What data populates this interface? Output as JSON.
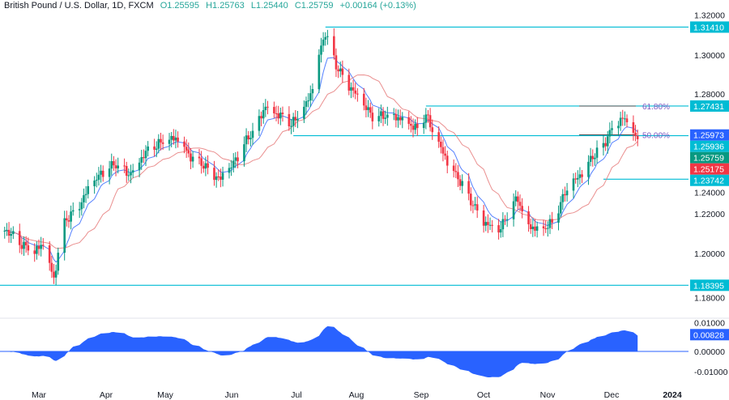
{
  "header": {
    "symbol": "British Pound / U.S. Dollar, 1D, FXCM",
    "open": "O1.25595",
    "high": "H1.25763",
    "low": "L1.25440",
    "close": "C1.25759",
    "change": "+0.00164 (+0.13%)"
  },
  "chart_data": [
    {
      "type": "candlestick",
      "title": "British Pound / U.S. Dollar, 1D, FXCM",
      "ylim": [
        1.17,
        1.32
      ],
      "y_ticks": [
        "1.32000",
        "1.30000",
        "1.28000",
        "1.24000",
        "1.22000",
        "1.20000",
        "1.18000"
      ],
      "x_ticks": [
        "Mar",
        "Apr",
        "May",
        "Jun",
        "Jul",
        "Aug",
        "Sep",
        "Oct",
        "Nov",
        "Dec",
        "2024"
      ],
      "approx_closes": [
        [
          "2023-02-13",
          1.213
        ],
        [
          "2023-02-20",
          1.205
        ],
        [
          "2023-02-27",
          1.2
        ],
        [
          "2023-03-03",
          1.205
        ],
        [
          "2023-03-08",
          1.187
        ],
        [
          "2023-03-12",
          1.215
        ],
        [
          "2023-03-20",
          1.225
        ],
        [
          "2023-03-26",
          1.235
        ],
        [
          "2023-04-01",
          1.242
        ],
        [
          "2023-04-06",
          1.245
        ],
        [
          "2023-04-12",
          1.24
        ],
        [
          "2023-04-19",
          1.25
        ],
        [
          "2023-04-26",
          1.255
        ],
        [
          "2023-05-05",
          1.258
        ],
        [
          "2023-05-10",
          1.25
        ],
        [
          "2023-05-17",
          1.245
        ],
        [
          "2023-05-25",
          1.237
        ],
        [
          "2023-05-31",
          1.245
        ],
        [
          "2023-06-05",
          1.255
        ],
        [
          "2023-06-11",
          1.265
        ],
        [
          "2023-06-15",
          1.275
        ],
        [
          "2023-06-21",
          1.27
        ],
        [
          "2023-06-27",
          1.265
        ],
        [
          "2023-07-02",
          1.27
        ],
        [
          "2023-07-06",
          1.28
        ],
        [
          "2023-07-10",
          1.3
        ],
        [
          "2023-07-13",
          1.312
        ],
        [
          "2023-07-18",
          1.295
        ],
        [
          "2023-07-24",
          1.285
        ],
        [
          "2023-07-30",
          1.275
        ],
        [
          "2023-08-05",
          1.268
        ],
        [
          "2023-08-11",
          1.27
        ],
        [
          "2023-08-19",
          1.268
        ],
        [
          "2023-08-25",
          1.262
        ],
        [
          "2023-08-29",
          1.27
        ],
        [
          "2023-09-02",
          1.258
        ],
        [
          "2023-09-09",
          1.245
        ],
        [
          "2023-09-15",
          1.235
        ],
        [
          "2023-09-20",
          1.225
        ],
        [
          "2023-09-26",
          1.215
        ],
        [
          "2023-10-02",
          1.21
        ],
        [
          "2023-10-07",
          1.222
        ],
        [
          "2023-10-11",
          1.228
        ],
        [
          "2023-10-15",
          1.215
        ],
        [
          "2023-10-21",
          1.212
        ],
        [
          "2023-10-27",
          1.215
        ],
        [
          "2023-11-02",
          1.23
        ],
        [
          "2023-11-08",
          1.238
        ],
        [
          "2023-11-14",
          1.248
        ],
        [
          "2023-11-20",
          1.255
        ],
        [
          "2023-11-25",
          1.265
        ],
        [
          "2023-11-29",
          1.268
        ],
        [
          "2023-12-03",
          1.262
        ],
        [
          "2023-12-06",
          1.25759
        ]
      ],
      "horizontal_levels": [
        {
          "price": 1.3141,
          "label": "1.31410",
          "from": "2023-07-13"
        },
        {
          "price": 1.27431,
          "label": "1.27431",
          "from": "2023-08-29"
        },
        {
          "price": 1.25936,
          "label": "1.25936",
          "from": "2023-06-28"
        },
        {
          "price": 1.23742,
          "label": "1.23742",
          "from": "2023-11-20"
        },
        {
          "price": 1.18395,
          "label": "1.18395",
          "from": "2023-02-01"
        }
      ],
      "fib_levels": [
        {
          "label": "61.80%",
          "price": 1.2743
        },
        {
          "label": "50.00%",
          "price": 1.2598
        }
      ],
      "price_labels": [
        {
          "label": "1.25973",
          "price": 1.2597,
          "color": "#2962ff"
        },
        {
          "label": "1.25759",
          "price": 1.25759,
          "color": "#089981"
        },
        {
          "label": "1.25175",
          "price": 1.25175,
          "color": "#f23645"
        }
      ],
      "colors": {
        "up": "#089981",
        "down": "#f23645",
        "ma_fast": "#2962ff",
        "ma_slow": "#e57373",
        "level": "#00bcd4",
        "fib": "#7e57c2"
      }
    },
    {
      "type": "area",
      "ylim": [
        -0.012,
        0.013
      ],
      "y_ticks": [
        "0.01000",
        "0.00000",
        "-0.01000"
      ],
      "last_label": "0.00828",
      "color": "#2962ff"
    }
  ]
}
